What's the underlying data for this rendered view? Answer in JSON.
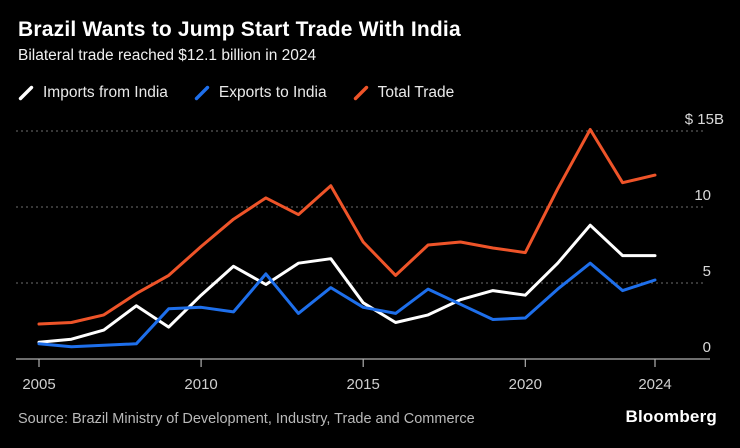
{
  "header": {
    "title": "Brazil Wants to Jump Start Trade With India",
    "subtitle": "Bilateral trade reached $12.1 billion in 2024"
  },
  "legend": {
    "items": [
      {
        "label": "Imports from India",
        "color": "#ffffff"
      },
      {
        "label": "Exports to India",
        "color": "#1e6feb"
      },
      {
        "label": "Total Trade",
        "color": "#ee5429"
      }
    ]
  },
  "footer": {
    "source": "Source: Brazil Ministry of Development, Industry, Trade and Commerce",
    "brand": "Bloomberg"
  },
  "chart_data": {
    "type": "line",
    "title": "Brazil Wants to Jump Start Trade With India",
    "subtitle": "Bilateral trade reached $12.1 billion in 2024",
    "unit": "$ billions",
    "x": [
      2005,
      2006,
      2007,
      2008,
      2009,
      2010,
      2011,
      2012,
      2013,
      2014,
      2015,
      2016,
      2017,
      2018,
      2019,
      2020,
      2021,
      2022,
      2023,
      2024
    ],
    "series": [
      {
        "name": "Imports from India",
        "color": "#ffffff",
        "values": [
          1.1,
          1.3,
          1.9,
          3.5,
          2.1,
          4.2,
          6.1,
          4.9,
          6.3,
          6.6,
          3.7,
          2.4,
          2.9,
          3.9,
          4.5,
          4.2,
          6.3,
          8.8,
          6.8,
          6.8
        ]
      },
      {
        "name": "Exports to India",
        "color": "#1e6feb",
        "values": [
          1.0,
          0.8,
          0.9,
          1.0,
          3.3,
          3.4,
          3.1,
          5.6,
          3.0,
          4.7,
          3.4,
          3.0,
          4.6,
          3.6,
          2.6,
          2.7,
          4.6,
          6.3,
          4.5,
          5.2
        ]
      },
      {
        "name": "Total Trade",
        "color": "#ee5429",
        "values": [
          2.3,
          2.4,
          2.9,
          4.3,
          5.5,
          7.4,
          9.2,
          10.6,
          9.5,
          11.4,
          7.7,
          5.5,
          7.5,
          7.7,
          7.3,
          7.0,
          11.2,
          15.1,
          11.6,
          12.1
        ]
      }
    ],
    "yticks": [
      {
        "value": 15,
        "label": "$ 15B"
      },
      {
        "value": 10,
        "label": "10"
      },
      {
        "value": 5,
        "label": "5"
      },
      {
        "value": 0,
        "label": "0"
      }
    ],
    "xticks": [
      {
        "value": 2005,
        "label": "2005"
      },
      {
        "value": 2010,
        "label": "2010"
      },
      {
        "value": 2015,
        "label": "2015"
      },
      {
        "value": 2020,
        "label": "2020"
      },
      {
        "value": 2024,
        "label": "2024"
      }
    ],
    "ylim": [
      0,
      15.5
    ],
    "grid": "horizontal-dotted",
    "legend_position": "top-left",
    "colors": {
      "background": "#000000",
      "grid": "#585858",
      "axis": "#b0b0b0",
      "tick_label": "#cfcfcf"
    }
  }
}
